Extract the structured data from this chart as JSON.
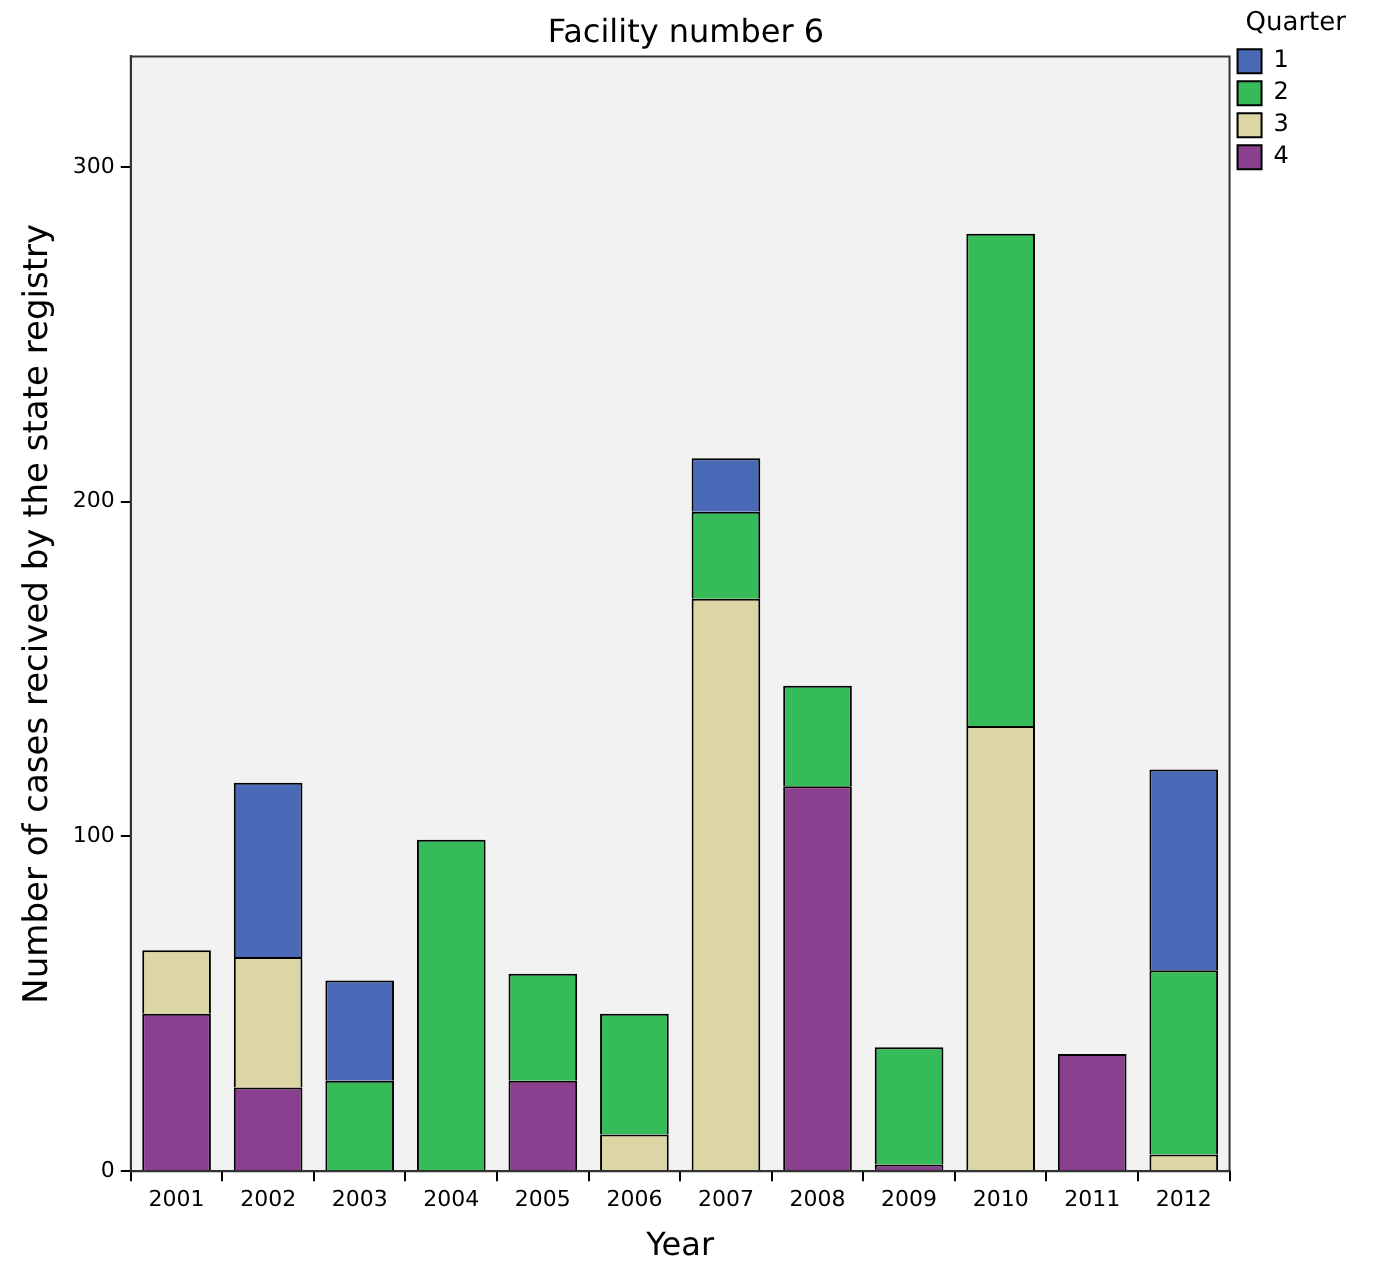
{
  "chart_data": {
    "type": "bar",
    "title": "Facility number 6",
    "xlabel": "Year",
    "ylabel": "Number of cases recived by the state registry",
    "legend_title": "Quarter",
    "categories": [
      "2001",
      "2002",
      "2003",
      "2004",
      "2005",
      "2006",
      "2007",
      "2008",
      "2009",
      "2010",
      "2011",
      "2012"
    ],
    "stacked": true,
    "series": [
      {
        "name": "4",
        "color": "#8b3f8f",
        "values": [
          47,
          25,
          0,
          0,
          27,
          0,
          0,
          115,
          2,
          0,
          35,
          0
        ]
      },
      {
        "name": "3",
        "color": "#dbd6a4",
        "values": [
          19,
          39,
          0,
          0,
          0,
          11,
          171,
          0,
          0,
          133,
          0,
          5
        ]
      },
      {
        "name": "2",
        "color": "#35bb57",
        "values": [
          0,
          0,
          27,
          99,
          32,
          36,
          26,
          30,
          35,
          147,
          0,
          55
        ]
      },
      {
        "name": "1",
        "color": "#4a6ab8",
        "values": [
          0,
          52,
          30,
          0,
          0,
          0,
          16,
          0,
          0,
          0,
          0,
          60
        ]
      }
    ],
    "ylim": [
      0,
      333
    ],
    "yticks": [
      0,
      100,
      200,
      300
    ],
    "grid": false,
    "legend": "top right"
  }
}
